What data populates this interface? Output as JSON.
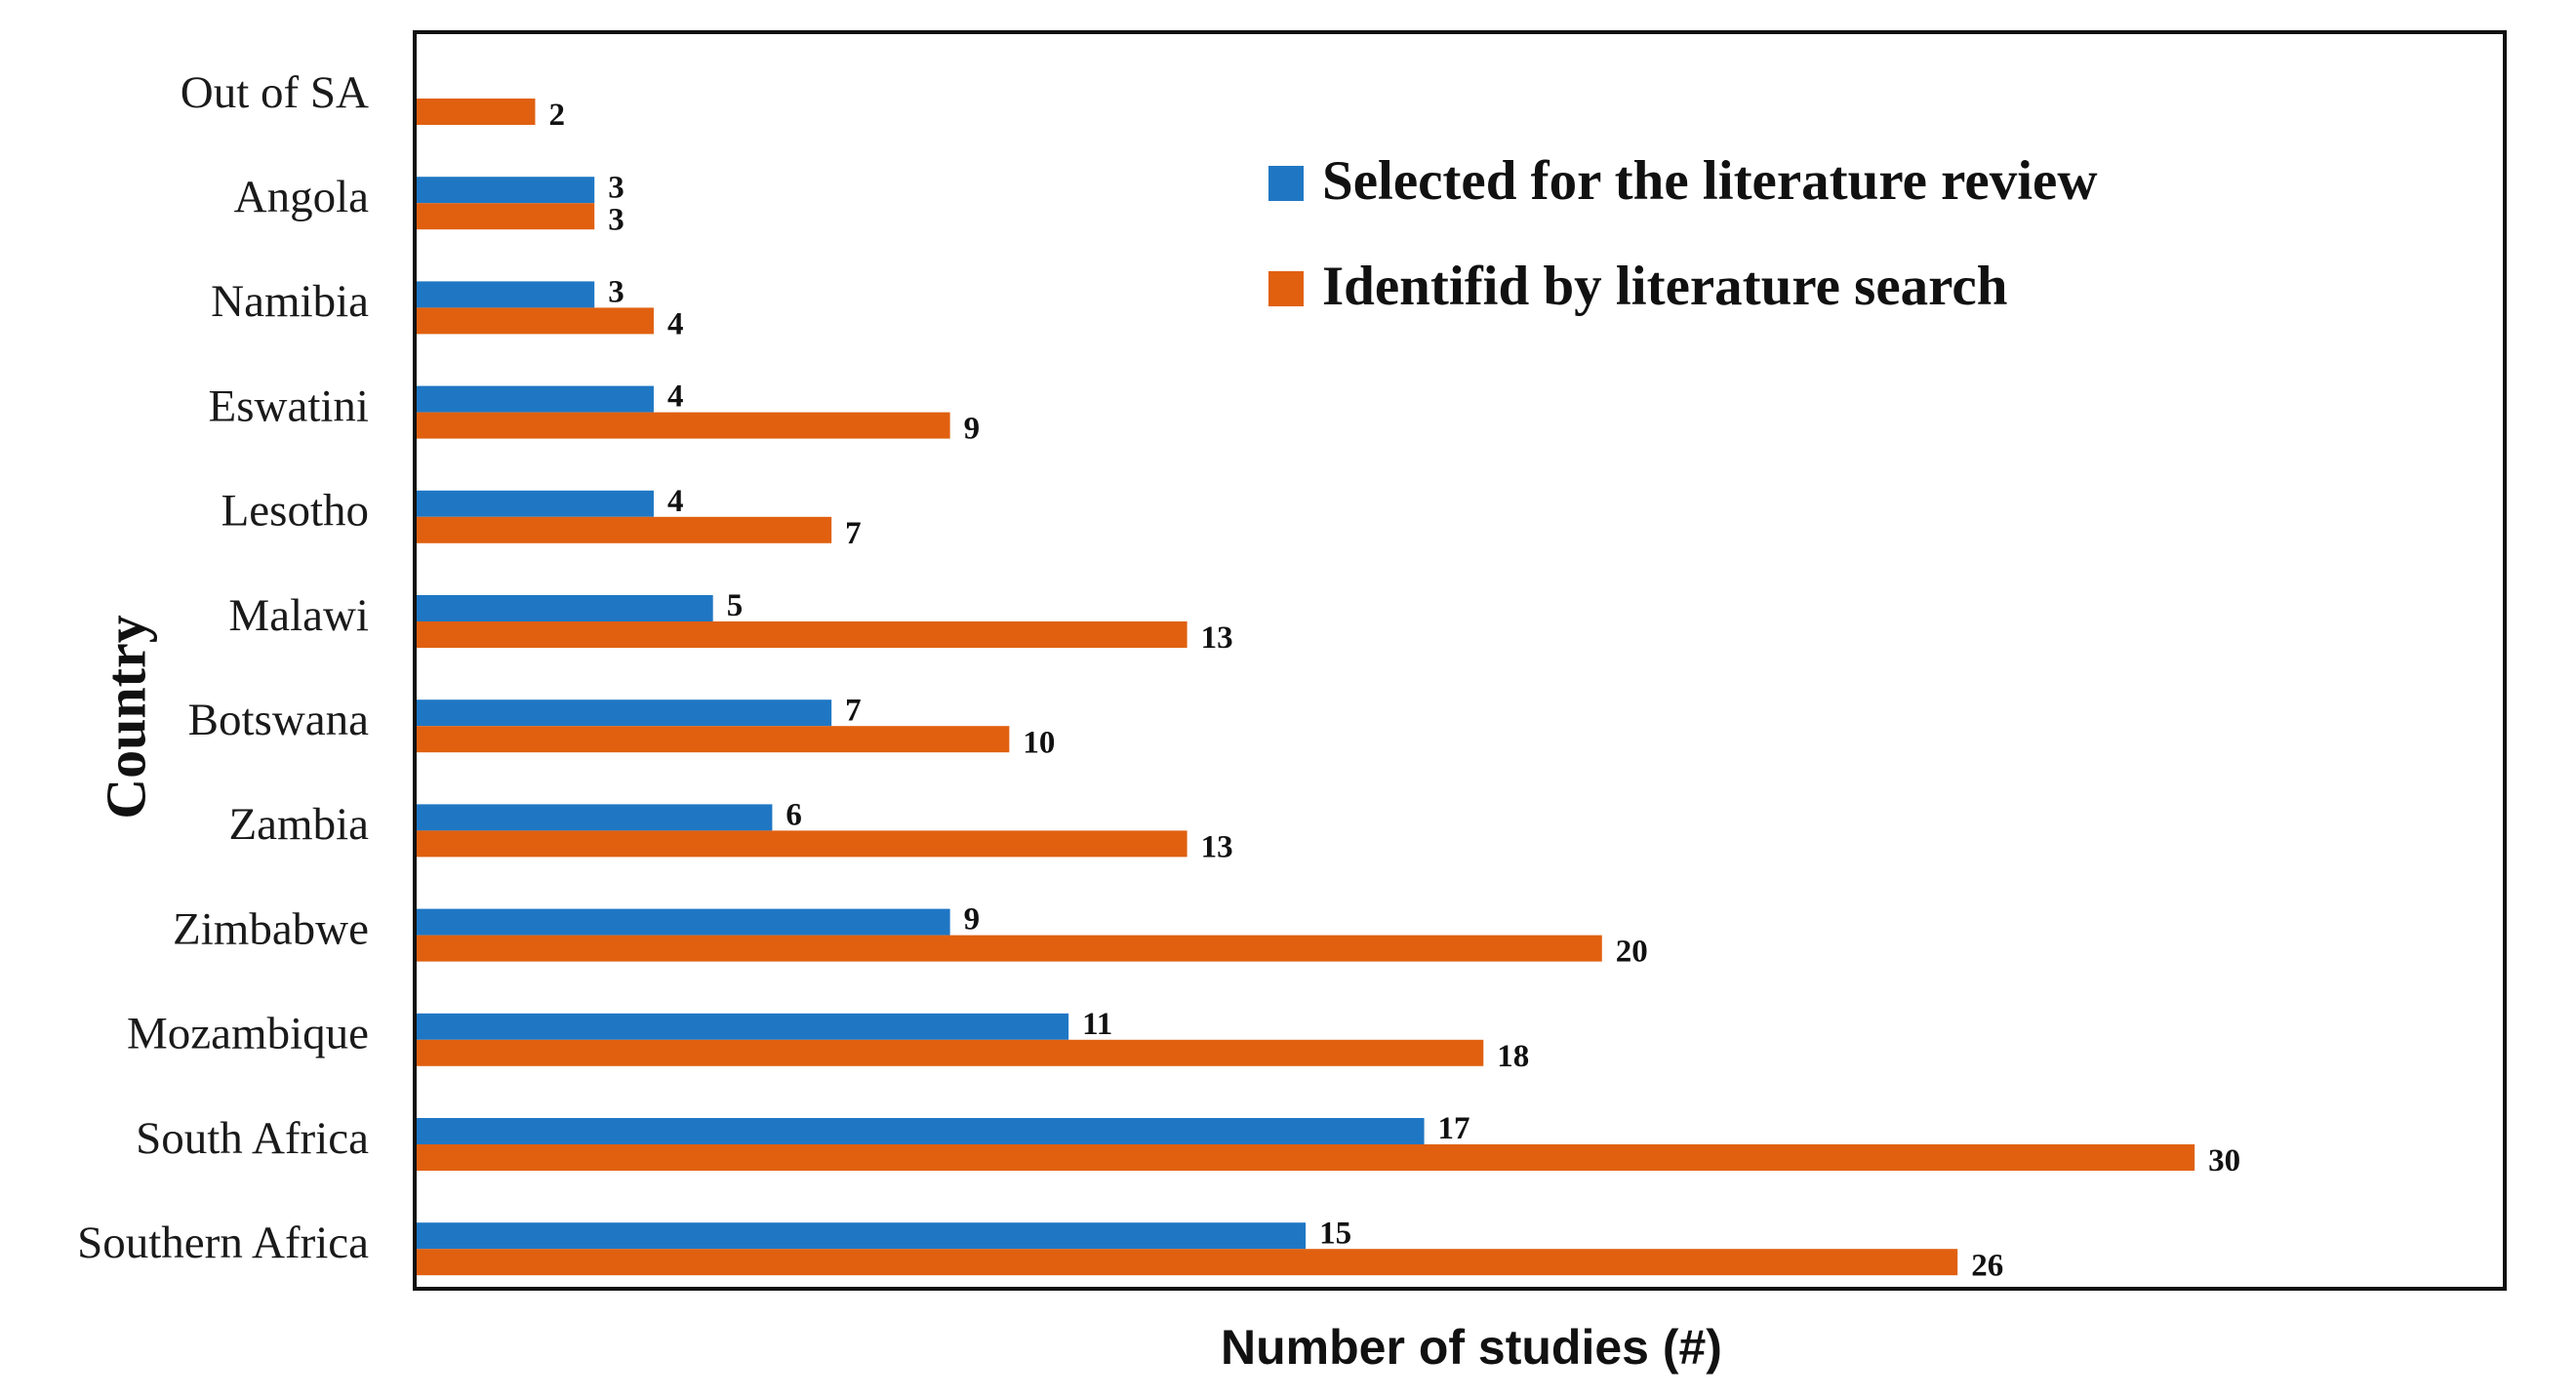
{
  "chart_data": {
    "type": "bar",
    "orientation": "horizontal",
    "title": "",
    "xlabel": "Number of  studies (#)",
    "ylabel": "Country",
    "categories": [
      "Out of SA",
      "Angola",
      "Namibia",
      "Eswatini",
      "Lesotho",
      "Malawi",
      "Botswana",
      "Zambia",
      "Zimbabwe",
      "Mozambique",
      "South Africa",
      "Southern Africa"
    ],
    "series": [
      {
        "name": "Selected for the literature review",
        "color": "#1f77c4",
        "values": [
          null,
          3,
          3,
          4,
          4,
          5,
          7,
          6,
          9,
          11,
          17,
          15
        ]
      },
      {
        "name": "Identifid by literature search",
        "color": "#e06010",
        "values": [
          2,
          3,
          4,
          9,
          7,
          13,
          10,
          13,
          20,
          18,
          30,
          26
        ]
      }
    ],
    "xlim": [
      0,
      35.2
    ],
    "grid": false,
    "legend_position": "top-right"
  }
}
